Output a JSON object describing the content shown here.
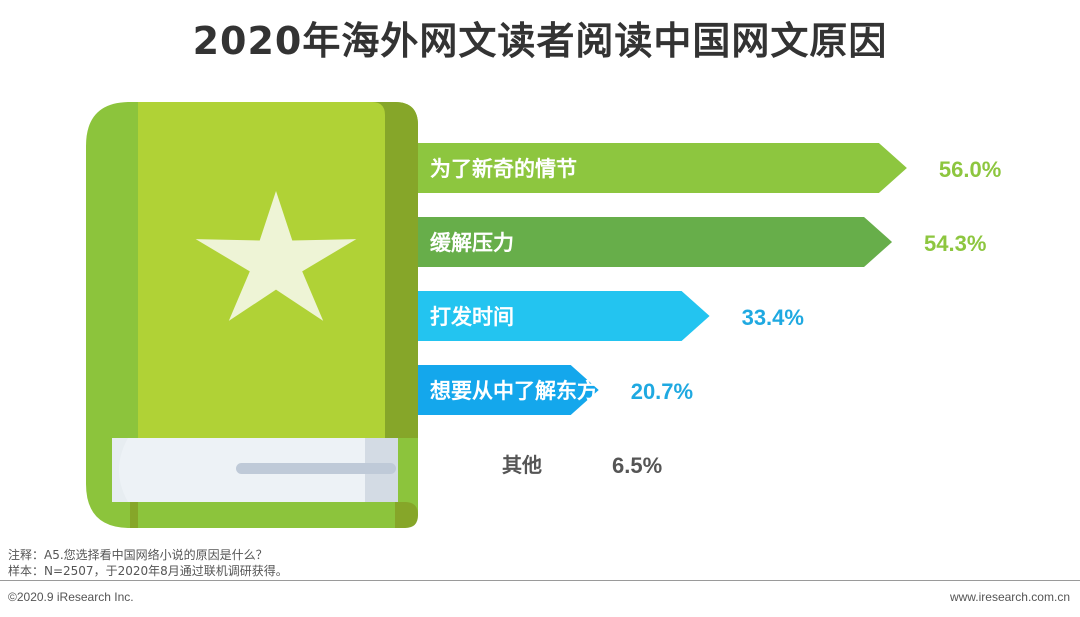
{
  "title": "2020年海外网文读者阅读中国网文原因",
  "chart_data": {
    "type": "bar",
    "orientation": "horizontal",
    "title": "2020年海外网文读者阅读中国网文原因",
    "categories": [
      "为了新奇的情节",
      "缓解压力",
      "打发时间",
      "想要从中了解东方文化",
      "其他"
    ],
    "values": [
      56.0,
      54.3,
      33.4,
      20.7,
      6.5
    ],
    "value_labels": [
      "56.0%",
      "54.3%",
      "33.4%",
      "20.7%",
      "6.5%"
    ],
    "unit": "%",
    "colors": [
      "#8dc63f",
      "#67ae4a",
      "#23c4f0",
      "#14a7ec",
      "#ffffff"
    ],
    "label_colors": [
      "#8dc63f",
      "#8dc63f",
      "#1fa9e1",
      "#1fa9e1",
      "#555555"
    ]
  },
  "notes": {
    "note1": "注释：A5.您选择看中国网络小说的原因是什么？",
    "note2": "样本：N=2507，于2020年8月通过联机调研获得。"
  },
  "footer": {
    "left": "©2020.9 iResearch Inc.",
    "right": "www.iresearch.com.cn"
  },
  "decor": {
    "book_icon": "book-with-star-icon",
    "book_cover_color": "#b0d236",
    "book_spine_color": "#8cc43c"
  }
}
